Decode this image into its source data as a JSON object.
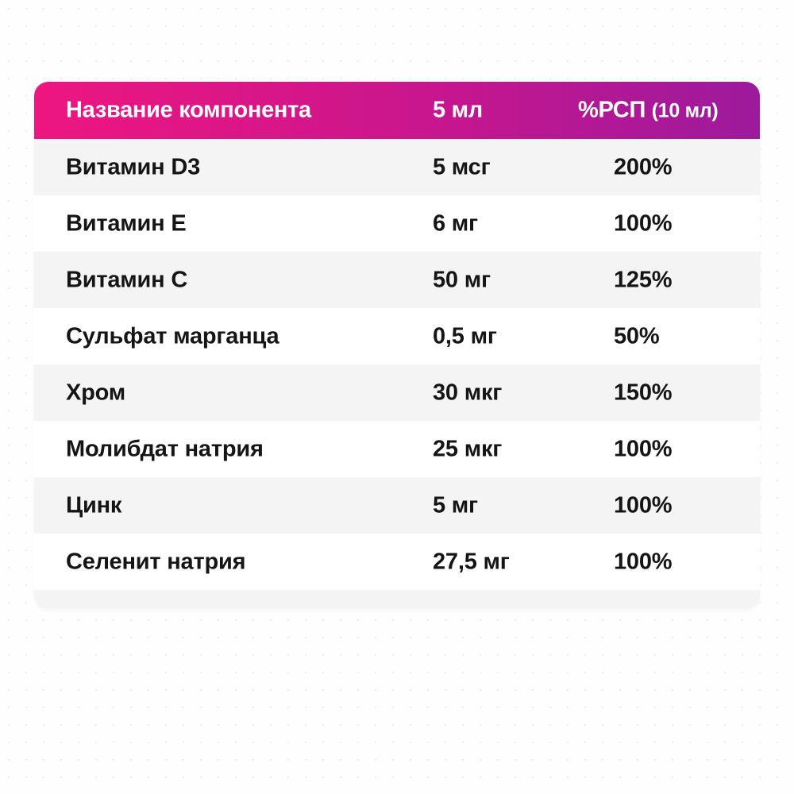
{
  "table": {
    "headers": {
      "name": "Название компонента",
      "amount": "5 мл",
      "rsp": "%РСП",
      "rsp_note": "(10 мл)"
    },
    "rows": [
      {
        "name": "Витамин D3",
        "amount": "5 мсг",
        "rsp": "200%"
      },
      {
        "name": "Витамин E",
        "amount": "6 мг",
        "rsp": "100%"
      },
      {
        "name": "Витамин C",
        "amount": "50 мг",
        "rsp": "125%"
      },
      {
        "name": "Сульфат марганца",
        "amount": "0,5 мг",
        "rsp": "50%"
      },
      {
        "name": "Хром",
        "amount": "30 мкг",
        "rsp": "150%"
      },
      {
        "name": "Молибдат натрия",
        "amount": "25 мкг",
        "rsp": "100%"
      },
      {
        "name": "Цинк",
        "amount": "5 мг",
        "rsp": "100%"
      },
      {
        "name": "Селенит натрия",
        "amount": "27,5 мг",
        "rsp": "100%"
      }
    ]
  },
  "colors": {
    "header_start": "#ee1680",
    "header_end": "#9c1a9c"
  }
}
